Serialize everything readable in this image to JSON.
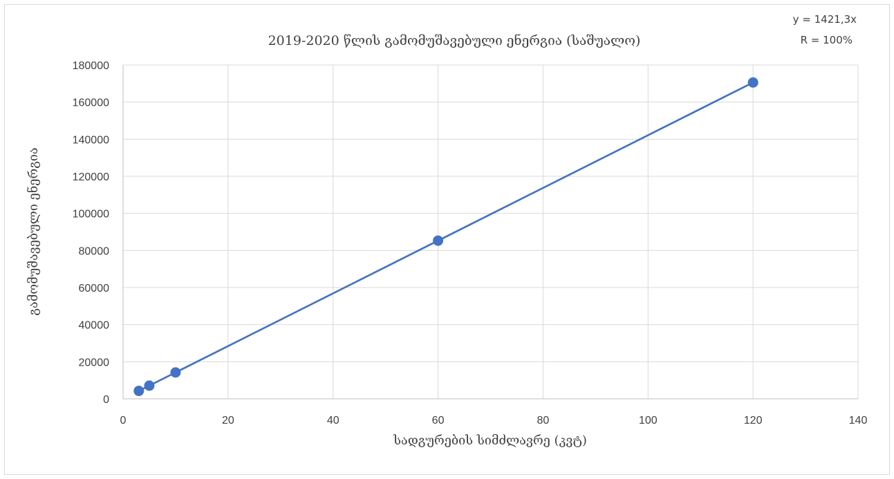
{
  "chart_data": {
    "type": "scatter",
    "title": "2019-2020 წლის გამომუშავებული ენერგია (საშუალო)",
    "xlabel": "სადგურების სიმძლავრე (კვტ)",
    "ylabel": "გამომუშავებული ენერგია",
    "xlim": [
      0,
      140
    ],
    "ylim": [
      0,
      180000
    ],
    "x_ticks": [
      0,
      20,
      40,
      60,
      80,
      100,
      120,
      140
    ],
    "y_ticks": [
      0,
      20000,
      40000,
      60000,
      80000,
      100000,
      120000,
      140000,
      160000,
      180000
    ],
    "grid": true,
    "series": [
      {
        "x": [
          3,
          5,
          10,
          60,
          120
        ],
        "y": [
          4264,
          7107,
          14213,
          85278,
          170556
        ],
        "color": "#4472c4"
      }
    ],
    "trendline": {
      "type": "linear",
      "slope": 1421.3,
      "intercept": 0,
      "x_range": [
        3,
        120
      ],
      "color": "#4472c4",
      "equation": "y = 1421,3x",
      "r_label": "R = 100%"
    }
  }
}
